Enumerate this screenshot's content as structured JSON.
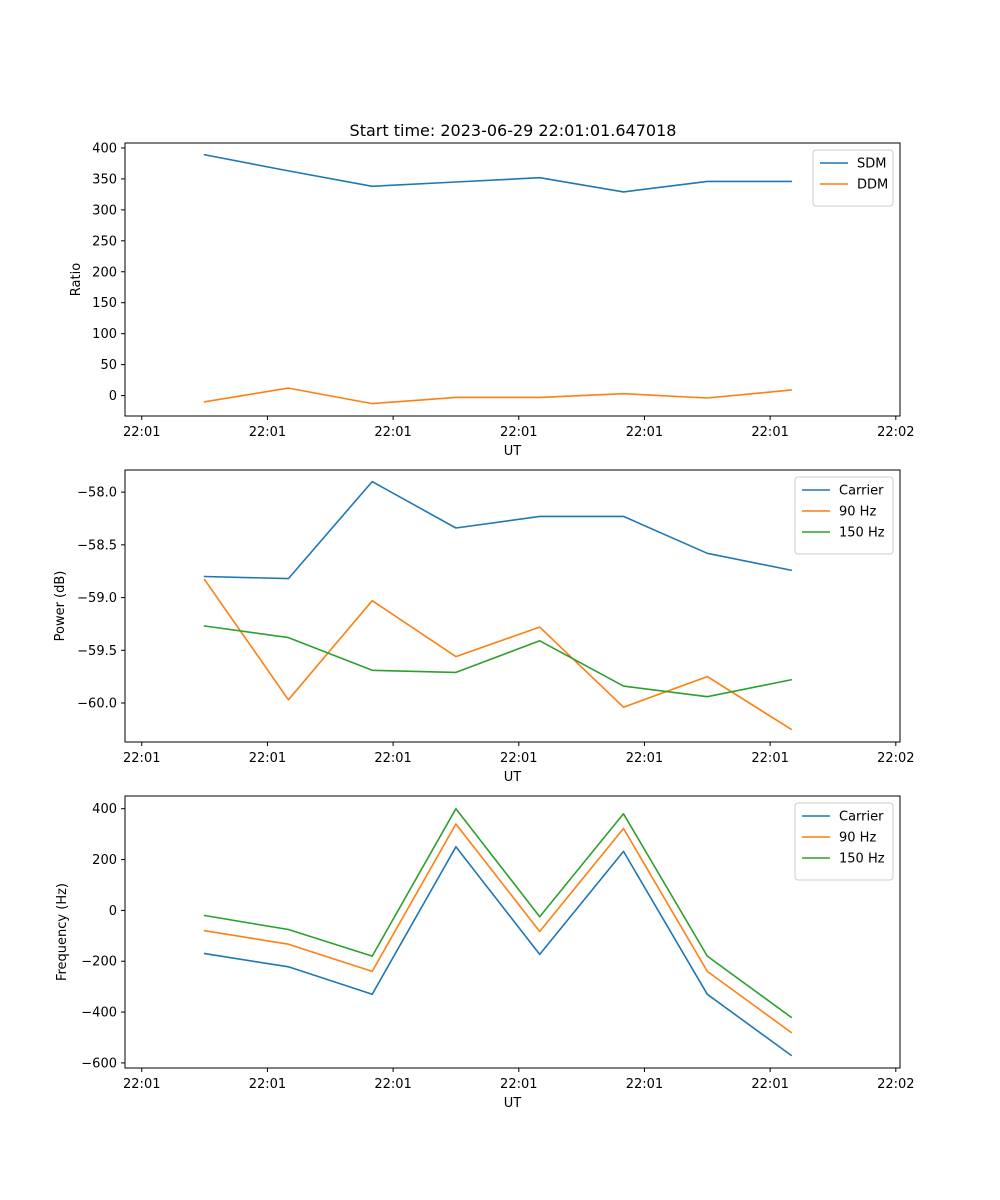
{
  "figure_title": "Start time: 2023-06-29 22:01:01.647018",
  "chart_data": [
    {
      "type": "line",
      "title": "Start time: 2023-06-29 22:01:01.647018",
      "xlabel": "UT",
      "ylabel": "Ratio",
      "x_tick_labels": [
        "22:01",
        "22:01",
        "22:01",
        "22:01",
        "22:01",
        "22:01",
        "22:02"
      ],
      "x_ticks": [
        0,
        1.5,
        3,
        4.5,
        6,
        7.5,
        9
      ],
      "xlim": [
        -0.2,
        9.05
      ],
      "x": [
        0.75,
        1.75,
        2.75,
        3.75,
        4.75,
        5.75,
        6.75,
        7.75
      ],
      "ylim": [
        -33,
        408
      ],
      "y_ticks": [
        0,
        50,
        100,
        150,
        200,
        250,
        300,
        350,
        400
      ],
      "legend": "top-right",
      "grid": false,
      "series": [
        {
          "name": "SDM",
          "color": "#1f77b4",
          "values": [
            389,
            363,
            338,
            345,
            352,
            329,
            346,
            346
          ]
        },
        {
          "name": "DDM",
          "color": "#ff7f0e",
          "values": [
            -10,
            12,
            -13,
            -3,
            -3,
            3,
            -4,
            9
          ]
        }
      ]
    },
    {
      "type": "line",
      "title": "",
      "xlabel": "UT",
      "ylabel": "Power (dB)",
      "x_tick_labels": [
        "22:01",
        "22:01",
        "22:01",
        "22:01",
        "22:01",
        "22:01",
        "22:02"
      ],
      "x_ticks": [
        0,
        1.5,
        3,
        4.5,
        6,
        7.5,
        9
      ],
      "xlim": [
        -0.2,
        9.05
      ],
      "x": [
        0.75,
        1.75,
        2.75,
        3.75,
        4.75,
        5.75,
        6.75,
        7.75
      ],
      "ylim": [
        -60.37,
        -57.79
      ],
      "y_ticks": [
        -60.0,
        -59.5,
        -59.0,
        -58.5,
        -58.0
      ],
      "y_tick_labels": [
        "−60.0",
        "−59.5",
        "−59.0",
        "−58.5",
        "−58.0"
      ],
      "legend": "top-right",
      "grid": false,
      "series": [
        {
          "name": "Carrier",
          "color": "#1f77b4",
          "values": [
            -58.8,
            -58.82,
            -57.9,
            -58.34,
            -58.23,
            -58.23,
            -58.58,
            -58.74
          ]
        },
        {
          "name": "90 Hz",
          "color": "#ff7f0e",
          "values": [
            -58.83,
            -59.97,
            -59.03,
            -59.56,
            -59.28,
            -60.04,
            -59.75,
            -60.25
          ]
        },
        {
          "name": "150 Hz",
          "color": "#2ca02c",
          "values": [
            -59.27,
            -59.38,
            -59.69,
            -59.71,
            -59.41,
            -59.84,
            -59.94,
            -59.78
          ]
        }
      ]
    },
    {
      "type": "line",
      "title": "",
      "xlabel": "UT",
      "ylabel": "Frequency (Hz)",
      "x_tick_labels": [
        "22:01",
        "22:01",
        "22:01",
        "22:01",
        "22:01",
        "22:01",
        "22:02"
      ],
      "x_ticks": [
        0,
        1.5,
        3,
        4.5,
        6,
        7.5,
        9
      ],
      "xlim": [
        -0.2,
        9.05
      ],
      "x": [
        0.75,
        1.75,
        2.75,
        3.75,
        4.75,
        5.75,
        6.75,
        7.75
      ],
      "ylim": [
        -620,
        450
      ],
      "y_ticks": [
        -600,
        -400,
        -200,
        0,
        200,
        400
      ],
      "y_tick_labels": [
        "−600",
        "−400",
        "−200",
        "0",
        "200",
        "400"
      ],
      "legend": "top-right",
      "grid": false,
      "series": [
        {
          "name": "Carrier",
          "color": "#1f77b4",
          "values": [
            -170,
            -222,
            -330,
            250,
            -173,
            232,
            -330,
            -570
          ]
        },
        {
          "name": "90 Hz",
          "color": "#ff7f0e",
          "values": [
            -80,
            -133,
            -240,
            340,
            -83,
            322,
            -240,
            -480
          ]
        },
        {
          "name": "150 Hz",
          "color": "#2ca02c",
          "values": [
            -20,
            -75,
            -180,
            400,
            -25,
            380,
            -180,
            -420
          ]
        }
      ]
    }
  ]
}
